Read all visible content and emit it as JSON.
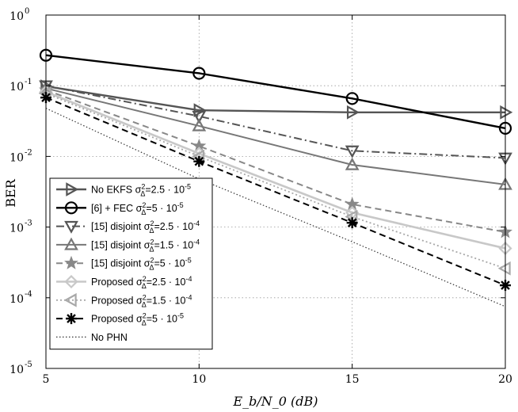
{
  "chart_data": {
    "type": "line",
    "title": "",
    "xlabel": "E_b/N_0 (dB)",
    "ylabel": "BER",
    "x_ticks": [
      5,
      10,
      15,
      20
    ],
    "xlim": [
      5,
      20
    ],
    "ylim": [
      1e-05,
      1
    ],
    "y_scale": "log",
    "y_ticks": [
      {
        "value": 1,
        "mantissa": "10",
        "exp": "0"
      },
      {
        "value": 0.1,
        "mantissa": "10",
        "exp": "-1"
      },
      {
        "value": 0.01,
        "mantissa": "10",
        "exp": "-2"
      },
      {
        "value": 0.001,
        "mantissa": "10",
        "exp": "-3"
      },
      {
        "value": 0.0001,
        "mantissa": "10",
        "exp": "-4"
      },
      {
        "value": 1e-05,
        "mantissa": "10",
        "exp": "-5"
      }
    ],
    "grid": true,
    "legend_position": "bottom-left",
    "series": [
      {
        "name": "No EKFS",
        "sigma_value": "=2.5 · 10",
        "sigma_exp": "-5",
        "color": "#555555",
        "width": 2.4,
        "dash": "",
        "marker": "tri-right",
        "x": [
          5,
          10,
          15,
          20
        ],
        "values": [
          0.098,
          0.045,
          0.042,
          0.042
        ]
      },
      {
        "name": "[6] + FEC",
        "sigma_value": "=5 · 10",
        "sigma_exp": "-5",
        "color": "#000000",
        "width": 2.4,
        "dash": "",
        "marker": "circle",
        "x": [
          5,
          10,
          15,
          20
        ],
        "values": [
          0.27,
          0.15,
          0.066,
          0.025
        ]
      },
      {
        "name": "[15] disjoint",
        "sigma_value": "=2.5 · 10",
        "sigma_exp": "-4",
        "color": "#555555",
        "width": 2,
        "dash": "10 4 2 4",
        "marker": "tri-down",
        "x": [
          5,
          10,
          15,
          20
        ],
        "values": [
          0.1,
          0.037,
          0.012,
          0.0095
        ]
      },
      {
        "name": "[15] disjoint",
        "sigma_value": "=1.5 · 10",
        "sigma_exp": "-4",
        "color": "#777777",
        "width": 2,
        "dash": "",
        "marker": "tri-up",
        "x": [
          5,
          10,
          15,
          20
        ],
        "values": [
          0.092,
          0.027,
          0.0076,
          0.004
        ]
      },
      {
        "name": "[15] disjoint",
        "sigma_value": "=5 · 10",
        "sigma_exp": "-5",
        "color": "#888888",
        "width": 2,
        "dash": "8 5",
        "marker": "star",
        "x": [
          5,
          10,
          15,
          20
        ],
        "values": [
          0.087,
          0.014,
          0.0021,
          0.00085
        ]
      },
      {
        "name": "Proposed",
        "sigma_value": "=2.5 · 10",
        "sigma_exp": "-4",
        "color": "#c8c8c8",
        "width": 2.6,
        "dash": "",
        "marker": "diamond",
        "x": [
          5,
          10,
          15,
          20
        ],
        "values": [
          0.082,
          0.011,
          0.0016,
          0.0005
        ]
      },
      {
        "name": "Proposed",
        "sigma_value": "=1.5 · 10",
        "sigma_exp": "-4",
        "color": "#a8a8a8",
        "width": 1.8,
        "dash": "2 3",
        "marker": "tri-left",
        "x": [
          5,
          10,
          15,
          20
        ],
        "values": [
          0.078,
          0.01,
          0.0014,
          0.00026
        ]
      },
      {
        "name": "Proposed",
        "sigma_value": "=5 · 10",
        "sigma_exp": "-5",
        "color": "#000000",
        "width": 2,
        "dash": "8 5",
        "marker": "asterisk",
        "x": [
          5,
          10,
          15,
          20
        ],
        "values": [
          0.068,
          0.0085,
          0.00115,
          0.00015
        ]
      },
      {
        "name": "No PHN",
        "sigma_value": "",
        "sigma_exp": "",
        "color": "#333333",
        "width": 1.2,
        "dash": "1.5 2.5",
        "marker": "none",
        "x": [
          5,
          10,
          15,
          20
        ],
        "values": [
          0.048,
          0.0048,
          0.00062,
          7.5e-05
        ]
      }
    ]
  }
}
